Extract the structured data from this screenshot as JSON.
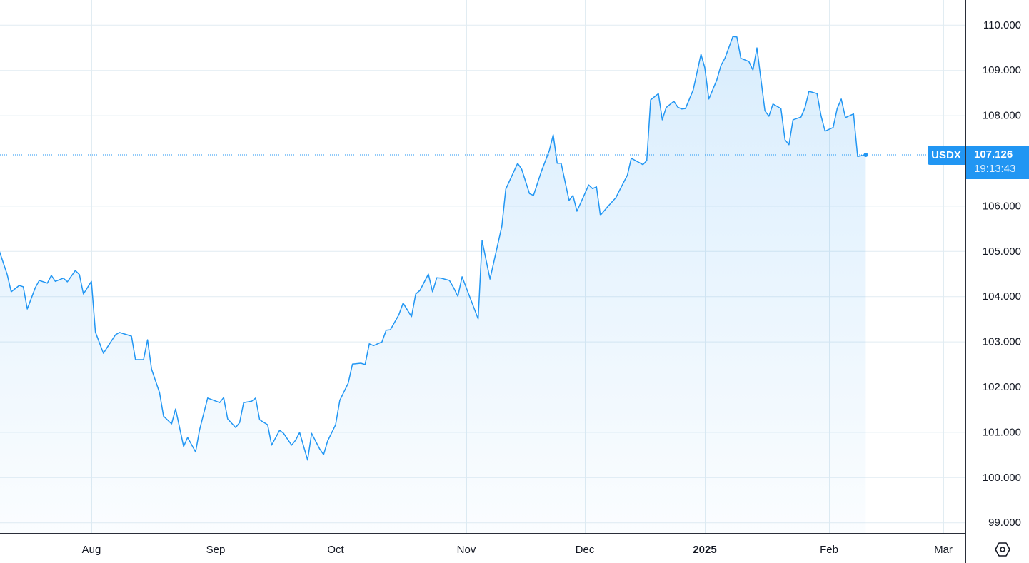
{
  "chart_data": {
    "type": "area",
    "symbol": "USDX",
    "last_price": "107.126",
    "last_time": "19:13:43",
    "y_ticks": [
      "99.000",
      "100.000",
      "101.000",
      "102.000",
      "103.000",
      "104.000",
      "105.000",
      "106.000",
      "108.000",
      "109.000",
      "110.000"
    ],
    "ylim": [
      98.8,
      110.5
    ],
    "grid": true,
    "x_ticks": [
      {
        "label": "Aug",
        "date": "2024-08-01",
        "bold": false
      },
      {
        "label": "Sep",
        "date": "2024-09-01",
        "bold": false
      },
      {
        "label": "Oct",
        "date": "2024-10-01",
        "bold": false
      },
      {
        "label": "Nov",
        "date": "2024-11-01",
        "bold": false
      },
      {
        "label": "Dec",
        "date": "2024-12-01",
        "bold": false
      },
      {
        "label": "2025",
        "date": "2025-01-01",
        "bold": true
      },
      {
        "label": "Feb",
        "date": "2025-02-01",
        "bold": false
      },
      {
        "label": "Mar",
        "date": "2025-03-01",
        "bold": false
      }
    ],
    "colors": {
      "line": "#2196f3",
      "fill": "#2196f3",
      "grid": "#e1ecf2",
      "axis": "#131722"
    },
    "series": [
      {
        "points": [
          [
            "2024-07-09",
            105.01
          ],
          [
            "2024-07-11",
            104.48
          ],
          [
            "2024-07-12",
            104.1
          ],
          [
            "2024-07-14",
            104.24
          ],
          [
            "2024-07-15",
            104.21
          ],
          [
            "2024-07-16",
            103.72
          ],
          [
            "2024-07-18",
            104.19
          ],
          [
            "2024-07-19",
            104.35
          ],
          [
            "2024-07-21",
            104.29
          ],
          [
            "2024-07-22",
            104.46
          ],
          [
            "2024-07-23",
            104.33
          ],
          [
            "2024-07-25",
            104.4
          ],
          [
            "2024-07-26",
            104.32
          ],
          [
            "2024-07-28",
            104.57
          ],
          [
            "2024-07-29",
            104.48
          ],
          [
            "2024-07-30",
            104.05
          ],
          [
            "2024-08-01",
            104.33
          ],
          [
            "2024-08-02",
            103.21
          ],
          [
            "2024-08-04",
            102.74
          ],
          [
            "2024-08-05",
            102.88
          ],
          [
            "2024-08-07",
            103.15
          ],
          [
            "2024-08-08",
            103.2
          ],
          [
            "2024-08-11",
            103.12
          ],
          [
            "2024-08-12",
            102.6
          ],
          [
            "2024-08-14",
            102.6
          ],
          [
            "2024-08-15",
            103.04
          ],
          [
            "2024-08-16",
            102.39
          ],
          [
            "2024-08-18",
            101.87
          ],
          [
            "2024-08-19",
            101.35
          ],
          [
            "2024-08-21",
            101.18
          ],
          [
            "2024-08-22",
            101.51
          ],
          [
            "2024-08-24",
            100.68
          ],
          [
            "2024-08-25",
            100.88
          ],
          [
            "2024-08-27",
            100.56
          ],
          [
            "2024-08-28",
            101.05
          ],
          [
            "2024-08-30",
            101.75
          ],
          [
            "2024-09-02",
            101.65
          ],
          [
            "2024-09-03",
            101.76
          ],
          [
            "2024-09-04",
            101.29
          ],
          [
            "2024-09-06",
            101.1
          ],
          [
            "2024-09-07",
            101.21
          ],
          [
            "2024-09-08",
            101.65
          ],
          [
            "2024-09-10",
            101.68
          ],
          [
            "2024-09-11",
            101.75
          ],
          [
            "2024-09-12",
            101.27
          ],
          [
            "2024-09-14",
            101.16
          ],
          [
            "2024-09-15",
            100.71
          ],
          [
            "2024-09-17",
            101.04
          ],
          [
            "2024-09-18",
            100.97
          ],
          [
            "2024-09-20",
            100.71
          ],
          [
            "2024-09-21",
            100.82
          ],
          [
            "2024-09-22",
            100.99
          ],
          [
            "2024-09-24",
            100.38
          ],
          [
            "2024-09-25",
            100.97
          ],
          [
            "2024-09-27",
            100.63
          ],
          [
            "2024-09-28",
            100.5
          ],
          [
            "2024-09-29",
            100.8
          ],
          [
            "2024-10-01",
            101.16
          ],
          [
            "2024-10-02",
            101.7
          ],
          [
            "2024-10-04",
            102.08
          ],
          [
            "2024-10-05",
            102.5
          ],
          [
            "2024-10-07",
            102.52
          ],
          [
            "2024-10-08",
            102.49
          ],
          [
            "2024-10-09",
            102.95
          ],
          [
            "2024-10-10",
            102.91
          ],
          [
            "2024-10-12",
            102.99
          ],
          [
            "2024-10-13",
            103.25
          ],
          [
            "2024-10-14",
            103.26
          ],
          [
            "2024-10-16",
            103.59
          ],
          [
            "2024-10-17",
            103.85
          ],
          [
            "2024-10-19",
            103.55
          ],
          [
            "2024-10-20",
            104.05
          ],
          [
            "2024-10-21",
            104.13
          ],
          [
            "2024-10-23",
            104.49
          ],
          [
            "2024-10-24",
            104.1
          ],
          [
            "2024-10-25",
            104.41
          ],
          [
            "2024-10-26",
            104.4
          ],
          [
            "2024-10-28",
            104.35
          ],
          [
            "2024-10-29",
            104.19
          ],
          [
            "2024-10-30",
            104.0
          ],
          [
            "2024-10-31",
            104.43
          ],
          [
            "2024-11-04",
            103.5
          ],
          [
            "2024-11-05",
            105.23
          ],
          [
            "2024-11-07",
            104.38
          ],
          [
            "2024-11-10",
            105.55
          ],
          [
            "2024-11-11",
            106.37
          ],
          [
            "2024-11-14",
            106.94
          ],
          [
            "2024-11-15",
            106.81
          ],
          [
            "2024-11-17",
            106.27
          ],
          [
            "2024-11-18",
            106.23
          ],
          [
            "2024-11-20",
            106.76
          ],
          [
            "2024-11-22",
            107.22
          ],
          [
            "2024-11-23",
            107.57
          ],
          [
            "2024-11-24",
            106.94
          ],
          [
            "2024-11-25",
            106.94
          ],
          [
            "2024-11-27",
            106.12
          ],
          [
            "2024-11-28",
            106.23
          ],
          [
            "2024-11-29",
            105.88
          ],
          [
            "2024-12-02",
            106.46
          ],
          [
            "2024-12-03",
            106.38
          ],
          [
            "2024-12-04",
            106.42
          ],
          [
            "2024-12-05",
            105.79
          ],
          [
            "2024-12-07",
            105.99
          ],
          [
            "2024-12-09",
            106.18
          ],
          [
            "2024-12-10",
            106.35
          ],
          [
            "2024-12-12",
            106.68
          ],
          [
            "2024-12-13",
            107.05
          ],
          [
            "2024-12-16",
            106.91
          ],
          [
            "2024-12-17",
            107.0
          ],
          [
            "2024-12-18",
            108.34
          ],
          [
            "2024-12-20",
            108.48
          ],
          [
            "2024-12-21",
            107.9
          ],
          [
            "2024-12-22",
            108.17
          ],
          [
            "2024-12-24",
            108.31
          ],
          [
            "2024-12-25",
            108.18
          ],
          [
            "2024-12-26",
            108.14
          ],
          [
            "2024-12-27",
            108.15
          ],
          [
            "2024-12-29",
            108.56
          ],
          [
            "2024-12-31",
            109.35
          ],
          [
            "2025-01-01",
            109.05
          ],
          [
            "2025-01-02",
            108.36
          ],
          [
            "2025-01-04",
            108.78
          ],
          [
            "2025-01-05",
            109.1
          ],
          [
            "2025-01-06",
            109.26
          ],
          [
            "2025-01-08",
            109.74
          ],
          [
            "2025-01-09",
            109.73
          ],
          [
            "2025-01-10",
            109.26
          ],
          [
            "2025-01-12",
            109.19
          ],
          [
            "2025-01-13",
            109.0
          ],
          [
            "2025-01-14",
            109.49
          ],
          [
            "2025-01-16",
            108.1
          ],
          [
            "2025-01-17",
            107.98
          ],
          [
            "2025-01-18",
            108.25
          ],
          [
            "2025-01-20",
            108.15
          ],
          [
            "2025-01-21",
            107.46
          ],
          [
            "2025-01-22",
            107.35
          ],
          [
            "2025-01-23",
            107.9
          ],
          [
            "2025-01-25",
            107.96
          ],
          [
            "2025-01-26",
            108.17
          ],
          [
            "2025-01-27",
            108.53
          ],
          [
            "2025-01-29",
            108.48
          ],
          [
            "2025-01-30",
            107.99
          ],
          [
            "2025-01-31",
            107.65
          ],
          [
            "2025-02-02",
            107.73
          ],
          [
            "2025-02-03",
            108.15
          ],
          [
            "2025-02-04",
            108.36
          ],
          [
            "2025-02-05",
            107.95
          ],
          [
            "2025-02-07",
            108.03
          ],
          [
            "2025-02-08",
            107.09
          ],
          [
            "2025-02-10",
            107.126
          ]
        ]
      }
    ]
  },
  "settings_icon": "settings-hexagon-icon"
}
